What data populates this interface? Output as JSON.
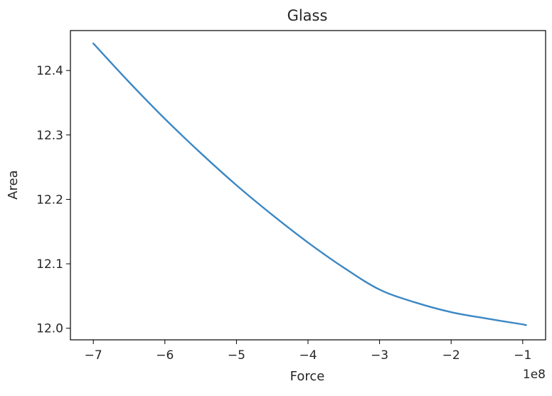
{
  "chart_data": {
    "type": "line",
    "title": "Glass",
    "xlabel": "Force",
    "ylabel": "Area",
    "x_offset_label": "1e8",
    "xlim": [
      -7.32,
      -0.68
    ],
    "ylim": [
      11.982,
      12.462
    ],
    "xticks": [
      -7,
      -6,
      -5,
      -4,
      -3,
      -2,
      -1
    ],
    "xtick_labels": [
      "−7",
      "−6",
      "−5",
      "−4",
      "−3",
      "−2",
      "−1"
    ],
    "yticks": [
      12.0,
      12.1,
      12.2,
      12.3,
      12.4
    ],
    "ytick_labels": [
      "12.0",
      "12.1",
      "12.2",
      "12.3",
      "12.4"
    ],
    "grid": false,
    "series": [
      {
        "color": "#3b87c4",
        "x": [
          -7.0,
          -6.5,
          -6.0,
          -5.5,
          -5.0,
          -4.5,
          -4.0,
          -3.5,
          -3.0,
          -2.5,
          -2.0,
          -1.5,
          -1.0,
          -0.97
        ],
        "y": [
          12.442,
          12.382,
          12.325,
          12.272,
          12.222,
          12.176,
          12.133,
          12.094,
          12.06,
          12.04,
          12.025,
          12.015,
          12.006,
          12.005
        ]
      }
    ]
  }
}
